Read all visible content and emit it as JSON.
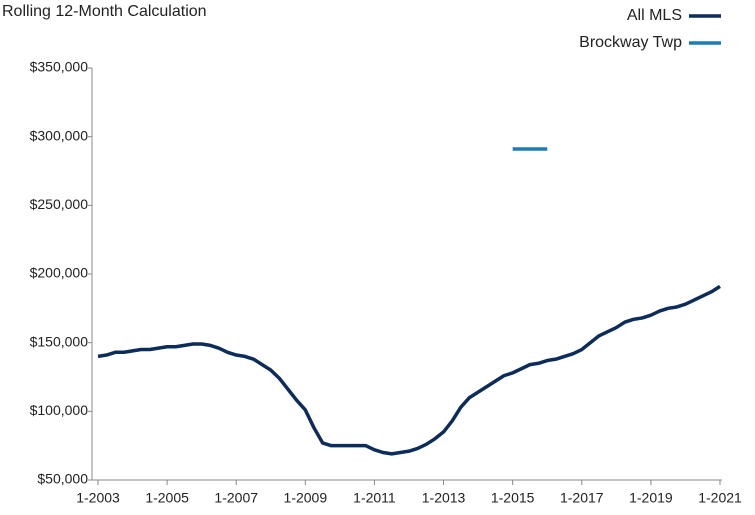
{
  "chart_data": {
    "type": "line",
    "title": "Rolling 12-Month Calculation",
    "categories": [
      "1-2003",
      null,
      null,
      null,
      null,
      null,
      null,
      null,
      "1-2005",
      null,
      null,
      null,
      null,
      null,
      null,
      null,
      "1-2007",
      null,
      null,
      null,
      null,
      null,
      null,
      null,
      "1-2009",
      null,
      null,
      null,
      null,
      null,
      null,
      null,
      "1-2011",
      null,
      null,
      null,
      null,
      null,
      null,
      null,
      "1-2013",
      null,
      null,
      null,
      null,
      null,
      null,
      null,
      "1-2015",
      null,
      null,
      null,
      null,
      null,
      null,
      null,
      "1-2017",
      null,
      null,
      null,
      null,
      null,
      null,
      null,
      "1-2019",
      null,
      null,
      null,
      null,
      null,
      null,
      null,
      "1-2021"
    ],
    "series": [
      {
        "name": "All MLS",
        "color": "#0c2c5c",
        "values": [
          140000,
          141000,
          143000,
          143000,
          144000,
          145000,
          145000,
          146000,
          147000,
          147000,
          148000,
          149000,
          149000,
          148000,
          146000,
          143000,
          141000,
          140000,
          138000,
          134000,
          130000,
          124000,
          116000,
          108000,
          101000,
          88000,
          77000,
          75000,
          75000,
          75000,
          75000,
          75000,
          72000,
          70000,
          69000,
          70000,
          71000,
          73000,
          76000,
          80000,
          85000,
          93000,
          103000,
          110000,
          114000,
          118000,
          122000,
          126000,
          128000,
          131000,
          134000,
          135000,
          137000,
          138000,
          140000,
          142000,
          145000,
          150000,
          155000,
          158000,
          161000,
          165000,
          167000,
          168000,
          170000,
          173000,
          175000,
          176000,
          178000,
          181000,
          184000,
          187000,
          191000
        ]
      },
      {
        "name": "Brockway Twp",
        "color": "#1a7db6",
        "values": [
          null,
          null,
          null,
          null,
          null,
          null,
          null,
          null,
          null,
          null,
          null,
          null,
          null,
          null,
          null,
          null,
          null,
          null,
          null,
          null,
          null,
          null,
          null,
          null,
          null,
          null,
          null,
          null,
          null,
          null,
          null,
          null,
          null,
          null,
          null,
          null,
          null,
          null,
          null,
          null,
          null,
          null,
          null,
          null,
          null,
          null,
          null,
          null,
          291000,
          291000,
          291000,
          291000,
          291000,
          null,
          null,
          null,
          null,
          null,
          null,
          null,
          null,
          null,
          null,
          null,
          null,
          null,
          null,
          null,
          null,
          null,
          null,
          null,
          null
        ]
      }
    ],
    "ylim": [
      50000,
      350000
    ],
    "yticks": [
      {
        "value": 50000,
        "label": "$50,000"
      },
      {
        "value": 100000,
        "label": "$100,000"
      },
      {
        "value": 150000,
        "label": "$150,000"
      },
      {
        "value": 200000,
        "label": "$200,000"
      },
      {
        "value": 250000,
        "label": "$250,000"
      },
      {
        "value": 300000,
        "label": "$300,000"
      },
      {
        "value": 350000,
        "label": "$350,000"
      }
    ],
    "grid": false,
    "legend": "top-right"
  }
}
